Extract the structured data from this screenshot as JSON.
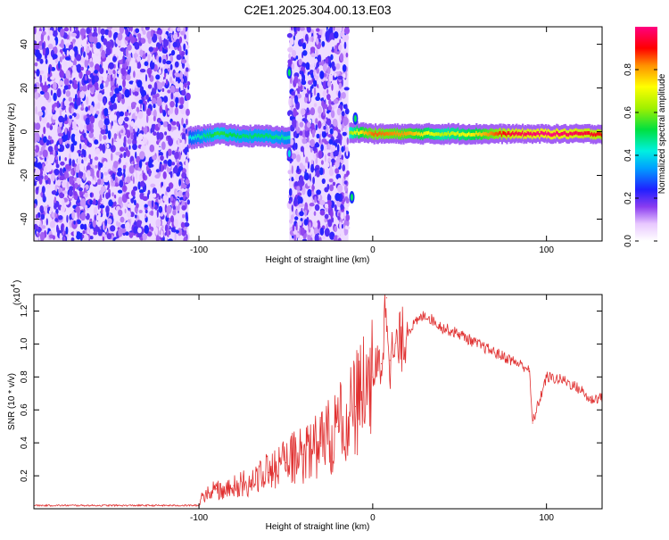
{
  "title": "C2E1.2025.304.00.13.E03",
  "chart_data": [
    {
      "type": "heatmap",
      "title": "C2E1.2025.304.00.13.E03",
      "xlabel": "Height of straight line (km)",
      "ylabel": "Frequency (Hz)",
      "xlim": [
        -195,
        132
      ],
      "ylim": [
        -50,
        48
      ],
      "xticks": [
        -100,
        0,
        100
      ],
      "xtick_labels": [
        "-100",
        "0",
        "100"
      ],
      "yticks": [
        -40,
        -20,
        0,
        20,
        40
      ],
      "ytick_labels": [
        "-40",
        "-20",
        "0",
        "20",
        "40"
      ],
      "colorbar": {
        "label": "Normalized spectral amplitude",
        "range": [
          0,
          1
        ],
        "ticks": [
          0,
          0.2,
          0.4,
          0.6,
          0.8
        ],
        "tick_labels": [
          "0.0",
          "0.2",
          "0.4",
          "0.6",
          "0.8"
        ]
      },
      "noise_regions_km": [
        [
          -195,
          -106
        ],
        [
          -48,
          -14
        ]
      ],
      "signal_trace": {
        "x": [
          -106,
          -90,
          -75,
          -60,
          -48,
          -30,
          -14,
          -10,
          0,
          20,
          40,
          60,
          80,
          100,
          120,
          132
        ],
        "frequency_hz": [
          -3,
          -1,
          -2,
          -2,
          -3,
          -2,
          -1,
          0,
          -1,
          -1,
          -1,
          -1,
          -1,
          -1,
          -1,
          -1
        ],
        "amplitude": [
          0.4,
          0.55,
          0.5,
          0.5,
          0.45,
          0.5,
          0.6,
          0.7,
          0.85,
          0.8,
          0.65,
          0.75,
          0.95,
          1.0,
          0.95,
          0.9
        ]
      },
      "spikes": [
        {
          "x": -48,
          "frequency_hz": 27,
          "amplitude": 0.5
        },
        {
          "x": -48,
          "frequency_hz": -10,
          "amplitude": 0.4
        },
        {
          "x": -10,
          "frequency_hz": 6,
          "amplitude": 0.5
        },
        {
          "x": -12,
          "frequency_hz": -30,
          "amplitude": 0.5
        }
      ]
    },
    {
      "type": "line",
      "xlabel": "Height of straight line (km)",
      "ylabel": "SNR (10 * v/v)",
      "scale_label": "(x10",
      "scale_exponent": "4",
      "xlim": [
        -195,
        132
      ],
      "ylim": [
        0,
        1.3
      ],
      "xticks": [
        -100,
        0,
        100
      ],
      "xtick_labels": [
        "-100",
        "0",
        "100"
      ],
      "yticks": [
        0.2,
        0.4,
        0.6,
        0.8,
        1.0,
        1.2
      ],
      "ytick_labels": [
        "0.2",
        "0.4",
        "0.6",
        "0.8",
        "1.0",
        "1.2"
      ],
      "line_color": "#e03030",
      "series": [
        {
          "name": "SNR",
          "x": [
            -195,
            -150,
            -100,
            -98,
            -90,
            -80,
            -70,
            -60,
            -50,
            -40,
            -30,
            -20,
            -10,
            0,
            5,
            8,
            10,
            20,
            30,
            40,
            50,
            60,
            70,
            80,
            90,
            92,
            100,
            110,
            120,
            125,
            132
          ],
          "y": [
            0.02,
            0.02,
            0.02,
            0.08,
            0.12,
            0.14,
            0.17,
            0.22,
            0.28,
            0.33,
            0.4,
            0.5,
            0.62,
            0.8,
            0.88,
            1.28,
            0.9,
            1.08,
            1.18,
            1.1,
            1.06,
            1.0,
            0.95,
            0.9,
            0.85,
            0.52,
            0.8,
            0.78,
            0.72,
            0.66,
            0.68
          ]
        }
      ]
    }
  ]
}
